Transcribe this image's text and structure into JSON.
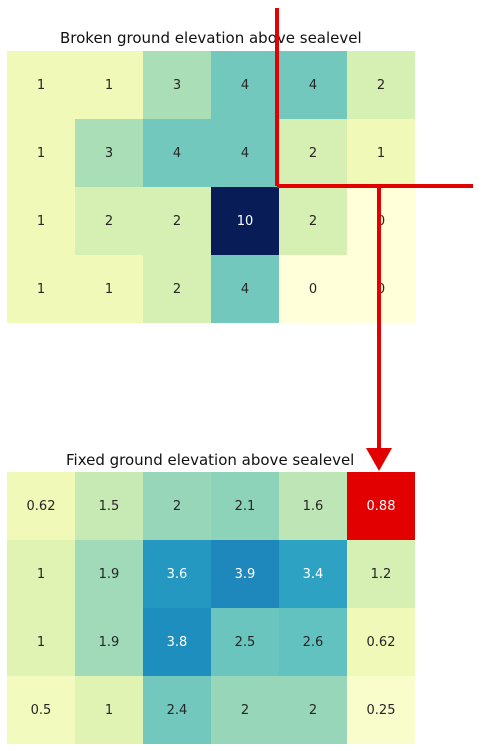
{
  "chart_data": [
    {
      "type": "heatmap",
      "title": "Broken ground elevation above sealevel",
      "rows": 4,
      "cols": 6,
      "values": [
        [
          1,
          1,
          3,
          4,
          4,
          2
        ],
        [
          1,
          3,
          4,
          4,
          2,
          1
        ],
        [
          1,
          2,
          2,
          10,
          2,
          0
        ],
        [
          1,
          1,
          2,
          4,
          0,
          0
        ]
      ],
      "labels": [
        [
          "1",
          "1",
          "3",
          "4",
          "4",
          "2"
        ],
        [
          "1",
          "3",
          "4",
          "4",
          "2",
          "1"
        ],
        [
          "1",
          "2",
          "2",
          "10",
          "2",
          "0"
        ],
        [
          "1",
          "1",
          "2",
          "4",
          "0",
          "0"
        ]
      ],
      "vmin": 0,
      "vmax": 10,
      "colormap": "YlGnBu"
    },
    {
      "type": "heatmap",
      "title": "Fixed ground elevation above sealevel",
      "rows": 4,
      "cols": 6,
      "values": [
        [
          0.62,
          1.5,
          2,
          2.1,
          1.6,
          0.88
        ],
        [
          1,
          1.9,
          3.6,
          3.9,
          3.4,
          1.2
        ],
        [
          1,
          1.9,
          3.8,
          2.5,
          2.6,
          0.62
        ],
        [
          0.5,
          1,
          2.4,
          2,
          2,
          0.25
        ]
      ],
      "labels": [
        [
          "0.62",
          "1.5",
          "2",
          "2.1",
          "1.6",
          "0.88"
        ],
        [
          "1",
          "1.9",
          "3.6",
          "3.9",
          "3.4",
          "1.2"
        ],
        [
          "1",
          "1.9",
          "3.8",
          "2.5",
          "2.6",
          "0.62"
        ],
        [
          "0.5",
          "1",
          "2.4",
          "2",
          "2",
          "0.25"
        ]
      ],
      "vmin": 0,
      "vmax": 6,
      "colormap": "YlGnBu",
      "highlight_cell": [
        0,
        5
      ],
      "highlight_color": "#e30000"
    }
  ],
  "colors": {
    "annotation": "#e30000",
    "colormap_stops": [
      "#ffffd9",
      "#edf8b1",
      "#c7e9b4",
      "#7fcdbb",
      "#41b6c4",
      "#1d91c0",
      "#225ea8",
      "#253494",
      "#081d58"
    ]
  }
}
